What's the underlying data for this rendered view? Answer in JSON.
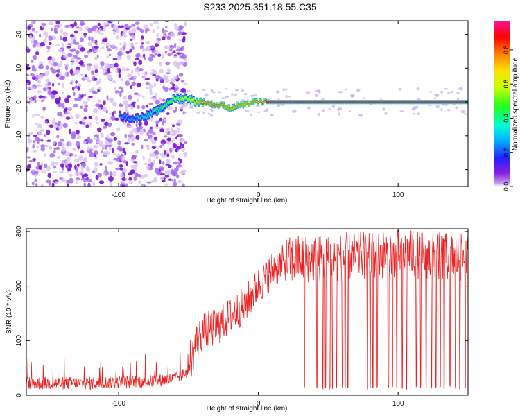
{
  "title": "S233.2025.351.18.55.C35",
  "colors": {
    "snr_line": "#ee2222",
    "spectrogram_noise": "#8a2be2",
    "axis": "#000000"
  },
  "colorbar": {
    "label": "Normalized spectral amplitude",
    "ticks": [
      "0.0",
      "0.2",
      "0.4",
      "0.6",
      "0.8"
    ],
    "tick_values": [
      0.0,
      0.2,
      0.4,
      0.6,
      0.8
    ],
    "range": [
      0,
      0.97
    ],
    "colormap": "rainbow (magenta-blue-cyan-green-yellow-red-pink)"
  },
  "chart_data": [
    {
      "type": "heatmap",
      "xlabel": "Height of straight line (km)",
      "ylabel": "Frequency (Hz)",
      "xlim": [
        -166,
        150
      ],
      "ylim": [
        -25,
        24
      ],
      "xticks": [
        -100,
        0,
        100
      ],
      "xtick_labels": [
        "-100",
        "0",
        "100"
      ],
      "yticks": [
        -20,
        -10,
        0,
        10,
        20
      ],
      "ytick_labels": [
        "-20",
        "-10",
        "0",
        "10",
        "20"
      ],
      "grid": false,
      "signal_ridge": {
        "x": [
          -100,
          -90,
          -80,
          -75,
          -70,
          -65,
          -60,
          -55,
          -50,
          -45,
          -40,
          -30,
          -25,
          -20,
          -15,
          -10,
          -5,
          0,
          10,
          50,
          100,
          150
        ],
        "freq": [
          -4,
          -5,
          -4,
          -3,
          -2,
          0,
          1,
          1,
          1,
          0,
          0,
          -1,
          -1,
          -2,
          -1,
          -1,
          0,
          0,
          0,
          0,
          0,
          0
        ],
        "amplitude": [
          0.25,
          0.3,
          0.35,
          0.4,
          0.45,
          0.5,
          0.55,
          0.6,
          0.6,
          0.7,
          0.85,
          0.85,
          0.8,
          0.75,
          0.75,
          0.8,
          0.8,
          0.85,
          0.95,
          0.95,
          0.95,
          0.95
        ]
      },
      "noise_region_km": [
        -166,
        -56
      ]
    },
    {
      "type": "line",
      "xlabel": "Height of straight line (km)",
      "ylabel": "SNR (10 * v/v)",
      "xlim": [
        -166,
        150
      ],
      "ylim": [
        0,
        305
      ],
      "xticks": [
        -100,
        0,
        100
      ],
      "xtick_labels": [
        "-100",
        "0",
        "100"
      ],
      "yticks": [
        0,
        100,
        200,
        300
      ],
      "ytick_labels": [
        "0",
        "100",
        "200",
        "300"
      ],
      "grid": false,
      "series": [
        {
          "trend_x": [
            -166,
            -120,
            -80,
            -60,
            -50,
            -45,
            -40,
            -30,
            -20,
            -10,
            0,
            10,
            20,
            30,
            50,
            100,
            150
          ],
          "trend_y": [
            22,
            22,
            25,
            30,
            45,
            95,
            115,
            125,
            145,
            165,
            200,
            230,
            245,
            250,
            250,
            260,
            250
          ],
          "dropouts_x": [
            33,
            42,
            46,
            48,
            51,
            53,
            56,
            60,
            62,
            64,
            78,
            80,
            82,
            85,
            93,
            96,
            99,
            103,
            106,
            113,
            116,
            120,
            124,
            127,
            130,
            133,
            137,
            141,
            144,
            148
          ],
          "dropout_floor": 10
        }
      ]
    }
  ]
}
